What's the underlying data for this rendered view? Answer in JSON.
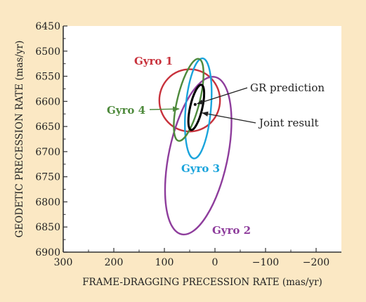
{
  "chart_data": {
    "type": "scatter",
    "xlabel": "FRAME-DRAGGING PRECESSION RATE (mas/yr)",
    "ylabel": "GEODETIC PRECESSION RATE (mas/yr)",
    "xlim": [
      300,
      -250
    ],
    "ylim": [
      6900,
      6450
    ],
    "x_ticks": [
      300,
      200,
      100,
      0,
      -100,
      -200
    ],
    "x_tick_labels": [
      "300",
      "200",
      "100",
      "0",
      "−100",
      "−200"
    ],
    "y_ticks": [
      6450,
      6500,
      6550,
      6600,
      6650,
      6700,
      6750,
      6800,
      6850,
      6900
    ],
    "y_tick_labels": [
      "6450",
      "6500",
      "6550",
      "6600",
      "6650",
      "6700",
      "6750",
      "6800",
      "6850",
      "6900"
    ],
    "grid": false,
    "series": [
      {
        "name": "Gyro 1",
        "color": "#c8323c",
        "shape": "ellipse",
        "center": [
          50,
          6598
        ],
        "rx": 60,
        "ry": 62,
        "angle_deg": 0
      },
      {
        "name": "Gyro 2",
        "color": "#8e3d9c",
        "shape": "ellipse",
        "center": [
          33,
          6708
        ],
        "rx": 58,
        "ry": 160,
        "angle_deg": 12
      },
      {
        "name": "Gyro 3",
        "color": "#1aa4dc",
        "shape": "ellipse",
        "center": [
          33,
          6614
        ],
        "rx": 25,
        "ry": 100,
        "angle_deg": 5
      },
      {
        "name": "Gyro 4",
        "color": "#4e8a3c",
        "shape": "ellipse",
        "center": [
          52,
          6597
        ],
        "rx": 22,
        "ry": 84,
        "angle_deg": 14
      },
      {
        "name": "Joint result",
        "color": "#000000",
        "shape": "ellipse",
        "center": [
          37,
          6612
        ],
        "rx": 12,
        "ry": 46,
        "angle_deg": 13
      },
      {
        "name": "GR prediction",
        "color": "#000000",
        "shape": "point",
        "x": 39.2,
        "y": 6606.1
      }
    ],
    "annotations": [
      {
        "id": "gyro1",
        "text": "Gyro 1",
        "color": "#c8323c"
      },
      {
        "id": "gyro2",
        "text": "Gyro 2",
        "color": "#8e3d9c"
      },
      {
        "id": "gyro3",
        "text": "Gyro 3",
        "color": "#1aa4dc"
      },
      {
        "id": "gyro4",
        "text": "Gyro 4",
        "color": "#4e8a3c"
      },
      {
        "id": "gr",
        "text": "GR prediction",
        "color": "#222222"
      },
      {
        "id": "joint",
        "text": "Joint result",
        "color": "#222222"
      }
    ]
  }
}
